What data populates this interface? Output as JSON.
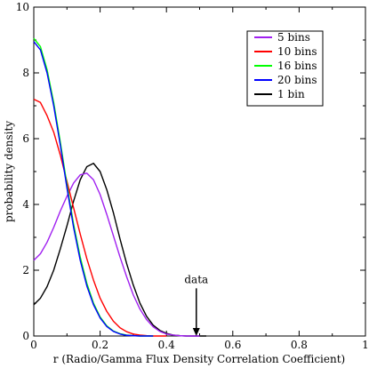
{
  "chart_data": {
    "type": "line",
    "title": "",
    "xlabel": "r (Radio/Gamma Flux Density Correlation Coefficient)",
    "ylabel": "probability density",
    "xlim": [
      0,
      1
    ],
    "ylim": [
      0,
      10
    ],
    "xticks": [
      "0",
      "0.2",
      "0.4",
      "0.6",
      "0.8",
      "1"
    ],
    "yticks": [
      "0",
      "2",
      "4",
      "6",
      "8",
      "10"
    ],
    "grid": false,
    "legend_position": "top-right",
    "annotation": {
      "text": "data",
      "x": 0.49,
      "arrow_from_y": 1.45,
      "arrow_to_y": 0.0
    },
    "series": [
      {
        "name": "5 bins",
        "color": "#a020f0",
        "x": [
          0,
          0.02,
          0.04,
          0.06,
          0.08,
          0.1,
          0.12,
          0.14,
          0.16,
          0.18,
          0.2,
          0.22,
          0.24,
          0.26,
          0.28,
          0.3,
          0.32,
          0.34,
          0.36,
          0.38,
          0.4,
          0.42,
          0.44,
          0.46,
          0.48,
          0.5
        ],
        "y": [
          2.3,
          2.5,
          2.85,
          3.3,
          3.8,
          4.25,
          4.65,
          4.9,
          4.95,
          4.75,
          4.3,
          3.7,
          3.05,
          2.4,
          1.8,
          1.25,
          0.82,
          0.5,
          0.28,
          0.14,
          0.06,
          0.03,
          0.01,
          0.0,
          0.0,
          0.0
        ]
      },
      {
        "name": "10 bins",
        "color": "#ff0000",
        "x": [
          0,
          0.02,
          0.04,
          0.06,
          0.08,
          0.1,
          0.12,
          0.14,
          0.16,
          0.18,
          0.2,
          0.22,
          0.24,
          0.26,
          0.28,
          0.3,
          0.32,
          0.34,
          0.36,
          0.38,
          0.4
        ],
        "y": [
          7.2,
          7.1,
          6.7,
          6.2,
          5.5,
          4.7,
          3.9,
          3.1,
          2.35,
          1.7,
          1.15,
          0.75,
          0.45,
          0.25,
          0.13,
          0.06,
          0.03,
          0.01,
          0.0,
          0.0,
          0.0
        ]
      },
      {
        "name": "16 bins",
        "color": "#00ff00",
        "x": [
          0,
          0.02,
          0.04,
          0.06,
          0.08,
          0.1,
          0.12,
          0.14,
          0.16,
          0.18,
          0.2,
          0.22,
          0.24,
          0.26,
          0.28,
          0.3,
          0.32,
          0.34,
          0.36
        ],
        "y": [
          9.05,
          8.8,
          8.1,
          7.1,
          5.9,
          4.6,
          3.4,
          2.4,
          1.6,
          1.0,
          0.58,
          0.31,
          0.15,
          0.07,
          0.03,
          0.01,
          0.0,
          0.0,
          0.0
        ]
      },
      {
        "name": "20 bins",
        "color": "#0000ff",
        "x": [
          0,
          0.02,
          0.04,
          0.06,
          0.08,
          0.1,
          0.12,
          0.14,
          0.16,
          0.18,
          0.2,
          0.22,
          0.24,
          0.26,
          0.28,
          0.3,
          0.32,
          0.34,
          0.36
        ],
        "y": [
          8.95,
          8.7,
          8.0,
          7.0,
          5.8,
          4.5,
          3.3,
          2.3,
          1.52,
          0.95,
          0.55,
          0.29,
          0.14,
          0.06,
          0.02,
          0.01,
          0.0,
          0.0,
          0.0
        ]
      },
      {
        "name": "1 bin",
        "color": "#000000",
        "x": [
          0,
          0.02,
          0.04,
          0.06,
          0.08,
          0.1,
          0.12,
          0.14,
          0.16,
          0.18,
          0.2,
          0.22,
          0.24,
          0.26,
          0.28,
          0.3,
          0.32,
          0.34,
          0.36,
          0.38,
          0.4,
          0.42,
          0.44,
          0.46,
          0.48,
          0.5,
          0.52
        ],
        "y": [
          0.95,
          1.15,
          1.5,
          2.0,
          2.65,
          3.35,
          4.1,
          4.75,
          5.15,
          5.25,
          5.0,
          4.45,
          3.75,
          2.95,
          2.2,
          1.55,
          1.0,
          0.6,
          0.33,
          0.17,
          0.08,
          0.03,
          0.01,
          0.0,
          0.0,
          0.0,
          0.0
        ]
      }
    ]
  }
}
